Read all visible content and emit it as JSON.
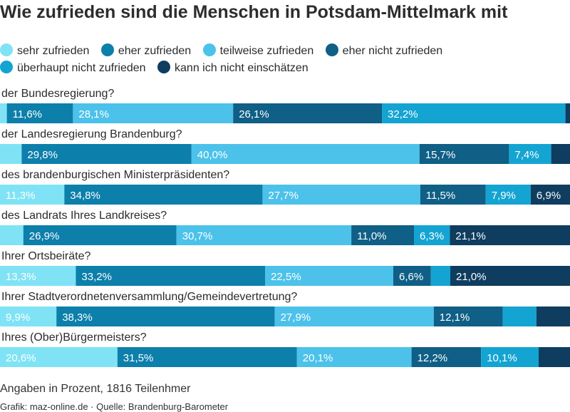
{
  "title": "Wie zufrieden sind die Menschen in Potsdam-Mittelmark mit",
  "legend": [
    {
      "label": "sehr zufrieden",
      "color": "#7fe3f5"
    },
    {
      "label": "eher zufrieden",
      "color": "#0d7fab"
    },
    {
      "label": "teilweise zufrieden",
      "color": "#4cc2ea"
    },
    {
      "label": "eher nicht zufrieden",
      "color": "#0f5f86"
    },
    {
      "label": "überhaupt nicht zufrieden",
      "color": "#14a4d2"
    },
    {
      "label": "kann ich nicht einschätzen",
      "color": "#0e3d60"
    }
  ],
  "chart_data": {
    "type": "bar",
    "orientation": "horizontal-stacked",
    "xlim": [
      0,
      100
    ],
    "categories": [
      "der Bundesregierung?",
      "der Landesregierung Brandenburg?",
      "des brandenburgischen Ministerpräsidenten?",
      "des Landrats Ihres Landkreises?",
      "Ihrer Ortsbeiräte?",
      "Ihrer Stadtverordnetenversammlung/Gemeindevertretung?",
      "Ihres (Ober)Bürgermeisters?"
    ],
    "series": [
      {
        "name": "sehr zufrieden",
        "values": [
          1.2,
          3.8,
          11.3,
          4.1,
          13.3,
          9.9,
          20.6
        ],
        "labels": [
          "",
          "",
          "11,3%",
          "",
          "13,3%",
          "9,9%",
          "20,6%"
        ]
      },
      {
        "name": "eher zufrieden",
        "values": [
          11.6,
          29.8,
          34.8,
          26.9,
          33.2,
          38.3,
          31.5
        ],
        "labels": [
          "11,6%",
          "29,8%",
          "34,8%",
          "26,9%",
          "33,2%",
          "38,3%",
          "31,5%"
        ]
      },
      {
        "name": "teilweise zufrieden",
        "values": [
          28.1,
          40.0,
          27.7,
          30.7,
          22.5,
          27.9,
          20.1
        ],
        "labels": [
          "28,1%",
          "40,0%",
          "27,7%",
          "30,7%",
          "22,5%",
          "27,9%",
          "20,1%"
        ]
      },
      {
        "name": "eher nicht zufrieden",
        "values": [
          26.1,
          15.7,
          11.5,
          11.0,
          6.6,
          12.1,
          12.2
        ],
        "labels": [
          "26,1%",
          "15,7%",
          "11,5%",
          "11,0%",
          "6,6%",
          "12,1%",
          "12,2%"
        ]
      },
      {
        "name": "überhaupt nicht zufrieden",
        "values": [
          32.2,
          7.4,
          7.9,
          6.3,
          3.4,
          5.9,
          10.1
        ],
        "labels": [
          "32,2%",
          "7,4%",
          "7,9%",
          "6,3%",
          "",
          "",
          "10,1%"
        ]
      },
      {
        "name": "kann ich nicht einschätzen",
        "values": [
          0.8,
          3.3,
          6.9,
          21.1,
          21.0,
          5.9,
          5.5
        ],
        "labels": [
          "",
          "",
          "6,9%",
          "21,1%",
          "21,0%",
          "",
          ""
        ]
      }
    ]
  },
  "footer": "Angaben in Prozent, 1816 Teilenhmer",
  "credit": "Grafik: maz-online.de · Quelle: Brandenburg-Barometer"
}
